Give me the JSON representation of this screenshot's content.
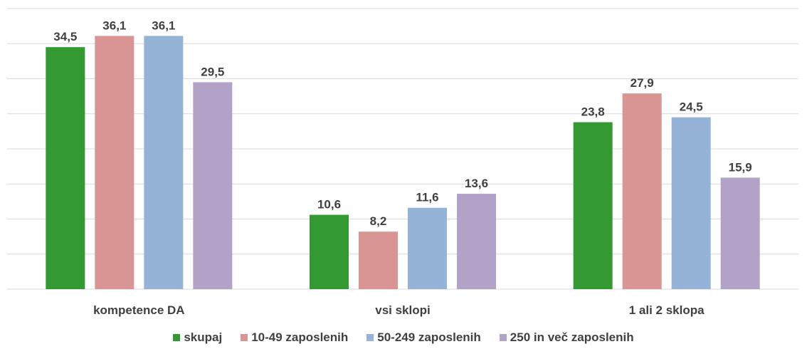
{
  "chart_data": {
    "type": "bar",
    "categories": [
      "kompetence DA",
      "vsi sklopi",
      "1 ali 2 sklopa"
    ],
    "series": [
      {
        "name": "skupaj",
        "values": [
          34.5,
          10.6,
          23.8
        ],
        "color": "#339933"
      },
      {
        "name": "10-49 zaposlenih",
        "values": [
          36.1,
          8.2,
          27.9
        ],
        "color": "#D99594"
      },
      {
        "name": "50-249 zaposlenih",
        "values": [
          36.1,
          11.6,
          24.5
        ],
        "color": "#95B3D7"
      },
      {
        "name": "250 in več zaposlenih",
        "values": [
          29.5,
          13.6,
          15.9
        ],
        "color": "#B2A2C7"
      }
    ],
    "ylim": [
      0,
      40
    ],
    "grid": true,
    "legend": "bottom",
    "data_labels": true
  }
}
